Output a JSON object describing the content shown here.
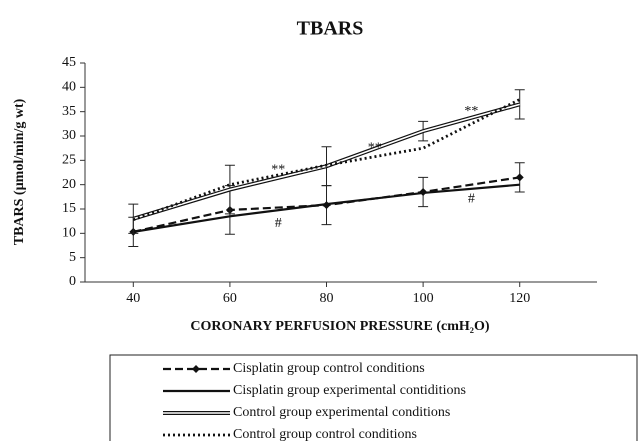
{
  "chart_data": {
    "type": "line",
    "title": "TBARS",
    "x_label": "CORONARY PERFUSION PRESSURE (cmH₂O)",
    "y_label": "TBARS (µmol/min/g wt)",
    "x": [
      40,
      60,
      80,
      100,
      120
    ],
    "xlim": [
      30,
      136
    ],
    "xticks": [
      40,
      60,
      80,
      100,
      120
    ],
    "ylim": [
      0,
      45
    ],
    "yticks": [
      0,
      5,
      10,
      15,
      20,
      25,
      30,
      35,
      40,
      45
    ],
    "series": [
      {
        "name": "Cisplatin group control conditions",
        "color": "#111111",
        "style": "dashed",
        "marker": "diamond",
        "values": [
          10.3,
          14.8,
          15.8,
          18.5,
          21.5
        ],
        "errors": [
          3,
          5,
          4,
          3,
          3
        ]
      },
      {
        "name": "Cisplatin group experimental contiditions",
        "color": "#111111",
        "style": "solid",
        "values": [
          10.3,
          13.5,
          16,
          18.3,
          20
        ]
      },
      {
        "name": "Control group experimental conditions",
        "color": "#111111",
        "style": "double",
        "values": [
          13,
          19,
          23.8,
          31,
          36.5
        ],
        "errors": [
          3,
          5,
          4,
          2,
          3
        ]
      },
      {
        "name": "Control group control conditions",
        "color": "#111111",
        "style": "dotted",
        "values": [
          12.8,
          20,
          24,
          27.5,
          37.5
        ]
      }
    ],
    "annotations": [
      {
        "text": "**",
        "x": 70,
        "y": 23
      },
      {
        "text": "**",
        "x": 90,
        "y": 27.5
      },
      {
        "text": "**",
        "x": 110,
        "y": 35
      },
      {
        "text": "#",
        "x": 70,
        "y": 12
      },
      {
        "text": "#",
        "x": 110,
        "y": 17
      }
    ]
  }
}
